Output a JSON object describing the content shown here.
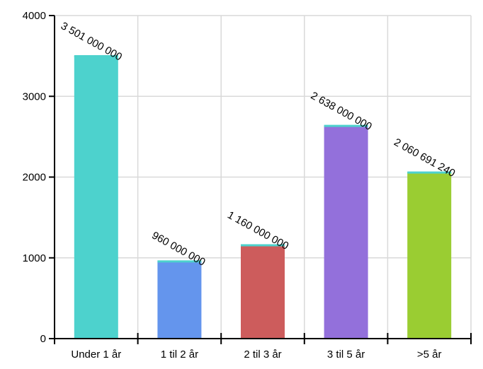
{
  "chart_data": {
    "type": "bar",
    "title": "",
    "xlabel": "",
    "ylabel": "",
    "categories": [
      "Under 1 år",
      "1 til 2 år",
      "2 til 3 år",
      "3 til 5 år",
      ">5 år"
    ],
    "values": [
      3501,
      960,
      1160,
      2638,
      2060.69124
    ],
    "data_labels": [
      "3 501 000 000",
      "960 000 000",
      "1 160 000 000",
      "2 638 000 000",
      "2 060 691 240"
    ],
    "colors": [
      "#4dd2cd",
      "#6495ed",
      "#cd5c5c",
      "#9370db",
      "#9acd32"
    ],
    "cap_color": "#4dd2cd",
    "ylim": [
      0,
      4000
    ],
    "yticks": [
      "0",
      "1000",
      "2000",
      "3000",
      "4000"
    ],
    "grid": true,
    "legend": "none"
  }
}
